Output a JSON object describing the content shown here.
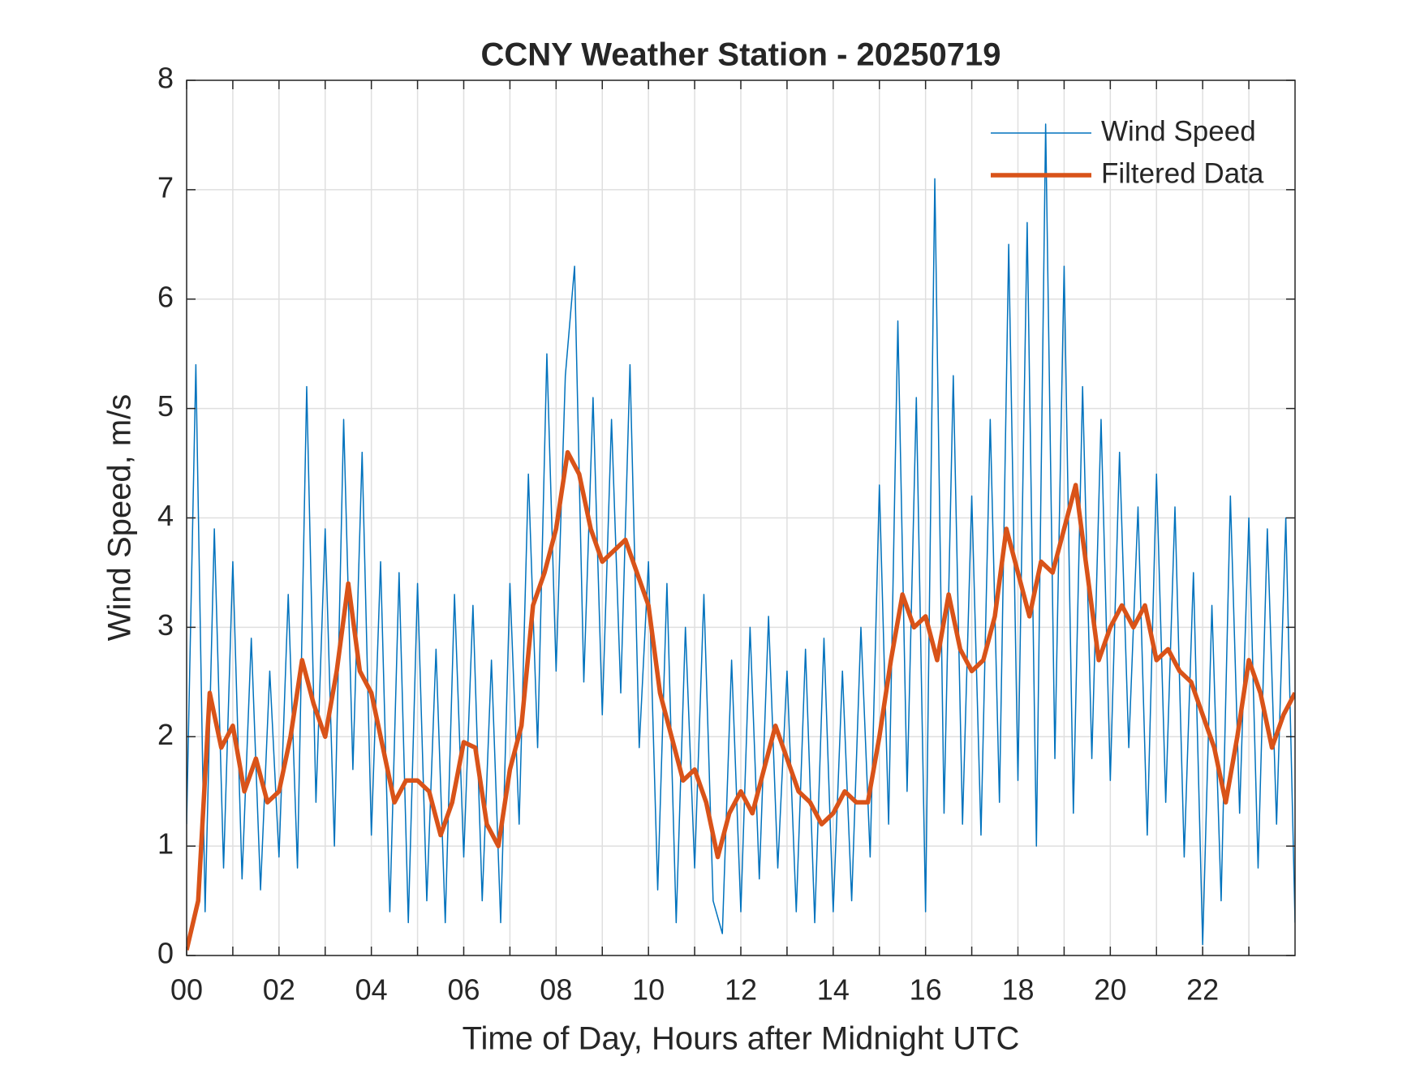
{
  "chart_data": {
    "type": "line",
    "title": "CCNY Weather Station - 20250719",
    "xlabel": "Time of Day, Hours after Midnight UTC",
    "ylabel": "Wind Speed, m/s",
    "xlim": [
      0,
      24
    ],
    "ylim": [
      0,
      8
    ],
    "xticks": [
      {
        "value": 0,
        "label": "00"
      },
      {
        "value": 2,
        "label": "02"
      },
      {
        "value": 4,
        "label": "04"
      },
      {
        "value": 6,
        "label": "06"
      },
      {
        "value": 8,
        "label": "08"
      },
      {
        "value": 10,
        "label": "10"
      },
      {
        "value": 12,
        "label": "12"
      },
      {
        "value": 14,
        "label": "14"
      },
      {
        "value": 16,
        "label": "16"
      },
      {
        "value": 18,
        "label": "18"
      },
      {
        "value": 20,
        "label": "20"
      },
      {
        "value": 22,
        "label": "22"
      }
    ],
    "xminorticks": [
      1,
      3,
      5,
      7,
      9,
      11,
      13,
      15,
      17,
      19,
      21,
      23
    ],
    "yticks": [
      0,
      1,
      2,
      3,
      4,
      5,
      6,
      7,
      8
    ],
    "grid": true,
    "legend": "top-right",
    "series": [
      {
        "name": "Wind Speed",
        "color": "#0072BD",
        "width": 1.5,
        "x": [
          0,
          0.2,
          0.4,
          0.6,
          0.8,
          1,
          1.2,
          1.4,
          1.6,
          1.8,
          2,
          2.2,
          2.4,
          2.6,
          2.8,
          3,
          3.2,
          3.4,
          3.6,
          3.8,
          4,
          4.2,
          4.4,
          4.6,
          4.8,
          5,
          5.2,
          5.4,
          5.6,
          5.8,
          6,
          6.2,
          6.4,
          6.6,
          6.8,
          7,
          7.2,
          7.4,
          7.6,
          7.8,
          8,
          8.2,
          8.4,
          8.6,
          8.8,
          9,
          9.2,
          9.4,
          9.6,
          9.8,
          10,
          10.2,
          10.4,
          10.6,
          10.8,
          11,
          11.2,
          11.4,
          11.6,
          11.8,
          12,
          12.2,
          12.4,
          12.6,
          12.8,
          13,
          13.2,
          13.4,
          13.6,
          13.8,
          14,
          14.2,
          14.4,
          14.6,
          14.8,
          15,
          15.2,
          15.4,
          15.6,
          15.8,
          16,
          16.2,
          16.4,
          16.6,
          16.8,
          17,
          17.2,
          17.4,
          17.6,
          17.8,
          18,
          18.2,
          18.4,
          18.6,
          18.8,
          19,
          19.2,
          19.4,
          19.6,
          19.8,
          20,
          20.2,
          20.4,
          20.6,
          20.8,
          21,
          21.2,
          21.4,
          21.6,
          21.8,
          22,
          22.2,
          22.4,
          22.6,
          22.8,
          23,
          23.2,
          23.4,
          23.6,
          23.8,
          24
        ],
        "values": [
          1.2,
          5.4,
          0.4,
          3.9,
          0.8,
          3.6,
          0.7,
          2.9,
          0.6,
          2.6,
          0.9,
          3.3,
          0.8,
          5.2,
          1.4,
          3.9,
          1.0,
          4.9,
          1.7,
          4.6,
          1.1,
          3.6,
          0.4,
          3.5,
          0.3,
          3.4,
          0.5,
          2.8,
          0.3,
          3.3,
          0.9,
          3.2,
          0.5,
          2.7,
          0.3,
          3.4,
          1.2,
          4.4,
          1.9,
          5.5,
          2.6,
          5.3,
          6.3,
          2.5,
          5.1,
          2.2,
          4.9,
          2.4,
          5.4,
          1.9,
          3.6,
          0.6,
          3.4,
          0.3,
          3.0,
          0.8,
          3.3,
          0.5,
          0.2,
          2.7,
          0.4,
          3.0,
          0.7,
          3.1,
          0.8,
          2.6,
          0.4,
          2.8,
          0.3,
          2.9,
          0.4,
          2.6,
          0.5,
          3.0,
          0.9,
          4.3,
          1.2,
          5.8,
          1.5,
          5.1,
          0.4,
          7.1,
          1.3,
          5.3,
          1.2,
          4.2,
          1.1,
          4.9,
          1.4,
          6.5,
          1.6,
          6.7,
          1.0,
          7.6,
          1.8,
          6.3,
          1.3,
          5.2,
          1.8,
          4.9,
          1.6,
          4.6,
          1.9,
          4.1,
          1.1,
          4.4,
          1.4,
          4.1,
          0.9,
          3.5,
          0.1,
          3.2,
          0.5,
          4.2,
          1.3,
          4.0,
          0.8,
          3.9,
          1.2,
          4.0,
          0.3
        ]
      },
      {
        "name": "Filtered Data",
        "color": "#D95319",
        "width": 5.5,
        "x": [
          0,
          0.25,
          0.5,
          0.75,
          1,
          1.25,
          1.5,
          1.75,
          2,
          2.25,
          2.5,
          2.75,
          3,
          3.25,
          3.5,
          3.75,
          4,
          4.25,
          4.5,
          4.75,
          5,
          5.25,
          5.5,
          5.75,
          6,
          6.25,
          6.5,
          6.75,
          7,
          7.25,
          7.5,
          7.75,
          8,
          8.25,
          8.5,
          8.75,
          9,
          9.25,
          9.5,
          9.75,
          10,
          10.25,
          10.5,
          10.75,
          11,
          11.25,
          11.5,
          11.75,
          12,
          12.25,
          12.5,
          12.75,
          13,
          13.25,
          13.5,
          13.75,
          14,
          14.25,
          14.5,
          14.75,
          15,
          15.25,
          15.5,
          15.75,
          16,
          16.25,
          16.5,
          16.75,
          17,
          17.25,
          17.5,
          17.75,
          18,
          18.25,
          18.5,
          18.75,
          19,
          19.25,
          19.5,
          19.75,
          20,
          20.25,
          20.5,
          20.75,
          21,
          21.25,
          21.5,
          21.75,
          22,
          22.25,
          22.5,
          22.75,
          23,
          23.25,
          23.5,
          23.75,
          24
        ],
        "values": [
          0.05,
          0.5,
          2.4,
          1.9,
          2.1,
          1.5,
          1.8,
          1.4,
          1.5,
          2.0,
          2.7,
          2.3,
          2.0,
          2.6,
          3.4,
          2.6,
          2.4,
          1.9,
          1.4,
          1.6,
          1.6,
          1.5,
          1.1,
          1.4,
          1.95,
          1.9,
          1.2,
          1.0,
          1.7,
          2.1,
          3.2,
          3.5,
          3.9,
          4.6,
          4.4,
          3.9,
          3.6,
          3.7,
          3.8,
          3.5,
          3.2,
          2.4,
          2.0,
          1.6,
          1.7,
          1.4,
          0.9,
          1.3,
          1.5,
          1.3,
          1.7,
          2.1,
          1.8,
          1.5,
          1.4,
          1.2,
          1.3,
          1.5,
          1.4,
          1.4,
          2.0,
          2.7,
          3.3,
          3.0,
          3.1,
          2.7,
          3.3,
          2.8,
          2.6,
          2.7,
          3.1,
          3.9,
          3.5,
          3.1,
          3.6,
          3.5,
          3.9,
          4.3,
          3.5,
          2.7,
          3.0,
          3.2,
          3.0,
          3.2,
          2.7,
          2.8,
          2.6,
          2.5,
          2.2,
          1.9,
          1.4,
          2.0,
          2.7,
          2.4,
          1.9,
          2.2,
          2.4
        ]
      }
    ]
  }
}
